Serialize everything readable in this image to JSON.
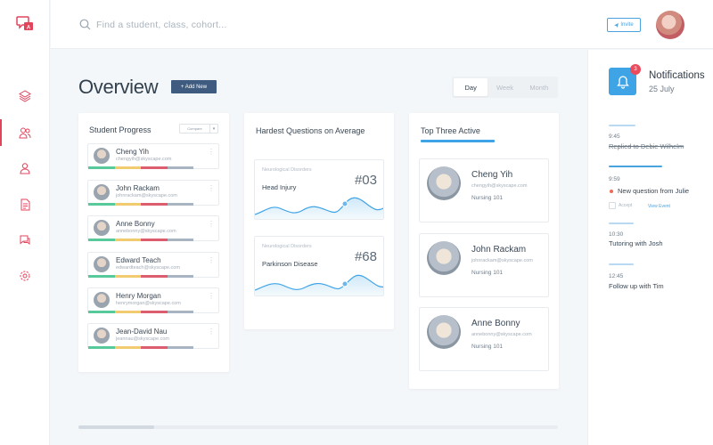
{
  "search": {
    "placeholder": "Find a student, class, cohort..."
  },
  "header": {
    "invite_label": "Invite"
  },
  "page": {
    "title": "Overview",
    "add_new_label": "+ Add New"
  },
  "period": {
    "options": [
      "Day",
      "Week",
      "Month"
    ],
    "selected": "Day"
  },
  "student_progress": {
    "title": "Student Progress",
    "filter_label": "Compare",
    "bar_colors": [
      "#58c99a",
      "#f1cc6e",
      "#dc5e6e",
      "#a9b4c2"
    ],
    "students": [
      {
        "name": "Cheng Yih",
        "email": "chengyih@skyscape.com"
      },
      {
        "name": "John Rackam",
        "email": "johnrackam@skyscape.com"
      },
      {
        "name": "Anne Bonny",
        "email": "annebonny@skyscape.com"
      },
      {
        "name": "Edward Teach",
        "email": "edwardteach@skyscape.com"
      },
      {
        "name": "Henry Morgan",
        "email": "henrymorgan@skyscape.com"
      },
      {
        "name": "Jean-David Nau",
        "email": "jeannau@skyscape.com"
      }
    ]
  },
  "hardest_questions": {
    "title": "Hardest Questions on Average",
    "items": [
      {
        "category": "Neurological Disorders",
        "name": "Head Injury",
        "rank": "#03"
      },
      {
        "category": "Neurological Disorders",
        "name": "Parkinson Disease",
        "rank": "#68"
      }
    ]
  },
  "top_active": {
    "title": "Top Three Active",
    "people": [
      {
        "name": "Cheng Yih",
        "email": "chengyih@skyscape.com",
        "course": "Nursing 101"
      },
      {
        "name": "John Rackam",
        "email": "johnrackam@skyscape.com",
        "course": "Nursing 101"
      },
      {
        "name": "Anne Bonny",
        "email": "annebonny@skyscape.com",
        "course": "Nursing 101"
      }
    ]
  },
  "notifications": {
    "title": "Notifications",
    "date": "25 July",
    "badge": "3",
    "items": [
      {
        "time": "9:45",
        "text": "Replied to Debie Wilhelm",
        "done": true
      },
      {
        "time": "9:59",
        "text": "New question from Julie",
        "accept_label": "Accept",
        "view_label": "View Event"
      },
      {
        "time": "10:30",
        "text": "Tutoring with Josh"
      },
      {
        "time": "12:45",
        "text": "Follow up with Tim"
      }
    ]
  },
  "colors": {
    "accent": "#3ea4e6",
    "danger": "#ea4c5d",
    "primary_button": "#3f5c80"
  }
}
